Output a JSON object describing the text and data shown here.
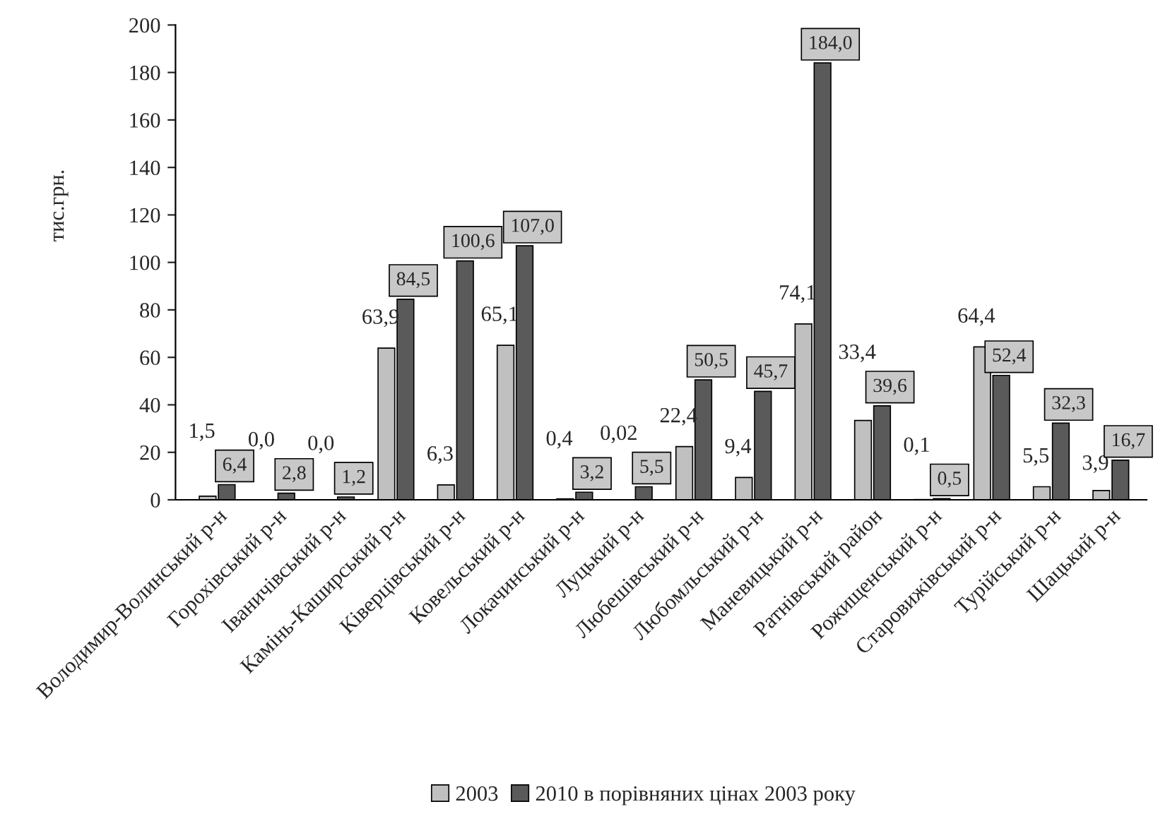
{
  "chart_data": {
    "type": "bar",
    "ylabel": "тис.грн.",
    "categories": [
      "Володимир-Волинський р-н",
      "Горохівський р-н",
      "Іваничівський р-н",
      "Камінь-Каширський р-н",
      "Ківерцівський р-н",
      "Ковельський р-н",
      "Локачинський р-н",
      "Луцький р-н",
      "Любешівський р-н",
      "Любомльський р-н",
      "Маневицький р-н",
      "Ратнівський район",
      "Рожищенський р-н",
      "Старовижівський р-н",
      "Турійський р-н",
      "Шацький р-н"
    ],
    "series": [
      {
        "name": "2003",
        "color": "#c0c0c0",
        "values": [
          1.5,
          0.0,
          0.0,
          63.9,
          6.3,
          65.1,
          0.4,
          0.02,
          22.4,
          9.4,
          74.1,
          33.4,
          0.1,
          64.4,
          5.5,
          3.9
        ],
        "value_labels": [
          "1,5",
          "0,0",
          "0,0",
          "63,9",
          "6,3",
          "65,1",
          "0,4",
          "0,02",
          "22,4",
          "9,4",
          "74,1",
          "33,4",
          "0,1",
          "64,4",
          "5,5",
          "3,9"
        ]
      },
      {
        "name": "2010 в порівняних цінах 2003 року",
        "color": "#5a5a5a",
        "values": [
          6.4,
          2.8,
          1.2,
          84.5,
          100.6,
          107.0,
          3.2,
          5.5,
          50.5,
          45.7,
          184.0,
          39.6,
          0.5,
          52.4,
          32.3,
          16.7
        ],
        "value_labels": [
          "6,4",
          "2,8",
          "1,2",
          "84,5",
          "100,6",
          "107,0",
          "3,2",
          "5,5",
          "50,5",
          "45,7",
          "184,0",
          "39,6",
          "0,5",
          "52,4",
          "32,3",
          "16,7"
        ]
      }
    ],
    "ylim": [
      0,
      200
    ],
    "yticks": [
      0,
      20,
      40,
      60,
      80,
      100,
      120,
      140,
      160,
      180,
      200
    ],
    "grid": false,
    "legend": "bottom"
  }
}
